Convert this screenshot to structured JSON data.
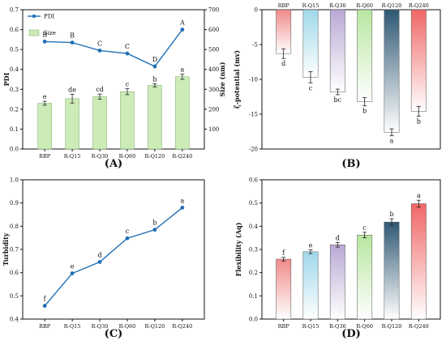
{
  "chart_data": [
    {
      "id": "A",
      "type": "bar+line",
      "panel_label": "(A)",
      "categories": [
        "RBP",
        "R-Q15",
        "R-Q30",
        "R-Q60",
        "R-Q120",
        "R-Q240"
      ],
      "legend": [
        {
          "label": "PDI",
          "kind": "line"
        },
        {
          "label": "Size",
          "kind": "bar"
        }
      ],
      "legend_position": "top-left",
      "left_axis": {
        "label": "PDI",
        "range": [
          0.0,
          0.7
        ],
        "ticks": [
          "0.0",
          "0.1",
          "0.2",
          "0.3",
          "0.4",
          "0.5",
          "0.6",
          "0.7"
        ]
      },
      "right_axis": {
        "label": "Size (nm)",
        "range": [
          0,
          700
        ],
        "ticks": [
          "100",
          "200",
          "300",
          "400",
          "500",
          "600",
          "700"
        ]
      },
      "series": [
        {
          "name": "PDI",
          "axis": "left",
          "kind": "line",
          "color": "#1f6fb5",
          "values": [
            0.54,
            0.535,
            0.495,
            0.48,
            0.415,
            0.6
          ],
          "errors": [
            0.008,
            0.008,
            0.01,
            0.01,
            0.01,
            0.008
          ],
          "labels": [
            "B",
            "B",
            "C",
            "C",
            "D",
            "A"
          ]
        },
        {
          "name": "Size",
          "axis": "right",
          "kind": "bar",
          "color": "#cdebb7",
          "values": [
            230,
            253,
            263,
            288,
            320,
            363
          ],
          "errors": [
            10,
            22,
            13,
            15,
            8,
            13
          ],
          "labels": [
            "e",
            "de",
            "cd",
            "c",
            "b",
            "a"
          ]
        }
      ]
    },
    {
      "id": "B",
      "type": "bar",
      "panel_label": "(B)",
      "categories": [
        "RBP",
        "R-Q15",
        "R-Q30",
        "R-Q60",
        "R-Q120",
        "R-Q240"
      ],
      "ylabel": "ζ-potential (mv)",
      "ylim": [
        -20,
        0
      ],
      "yticks": [
        "-20",
        "-15",
        "-10",
        "-5",
        "0"
      ],
      "categories_position": "top",
      "values": [
        -6.3,
        -9.7,
        -11.8,
        -13.2,
        -17.6,
        -14.6
      ],
      "errors": [
        0.7,
        0.8,
        0.4,
        0.6,
        0.5,
        0.7
      ],
      "labels": [
        "d",
        "c",
        "bc",
        "b",
        "a",
        "b"
      ],
      "colors": [
        "#f08a8a",
        "#9fd8ea",
        "#b9a8d4",
        "#b8e6a0",
        "#2f5874",
        "#f06666"
      ]
    },
    {
      "id": "C",
      "type": "line",
      "panel_label": "(C)",
      "categories": [
        "RBP",
        "R-Q15",
        "R-Q30",
        "R-Q60",
        "R-Q120",
        "R-Q240"
      ],
      "ylabel": "Turbidity",
      "ylim": [
        0.4,
        1.0
      ],
      "yticks": [
        "0.4",
        "0.5",
        "0.6",
        "0.7",
        "0.8",
        "0.9",
        "1.0"
      ],
      "values": [
        0.457,
        0.597,
        0.646,
        0.748,
        0.785,
        0.88
      ],
      "labels": [
        "f",
        "e",
        "d",
        "c",
        "b",
        "a"
      ],
      "color": "#1f6fb5"
    },
    {
      "id": "D",
      "type": "bar",
      "panel_label": "(D)",
      "categories": [
        "RBP",
        "R-Q15",
        "R-Q30",
        "R-Q60",
        "R-Q120",
        "R-Q240"
      ],
      "ylabel": "Flexibility (Aq)",
      "ylim": [
        0.0,
        0.6
      ],
      "yticks": [
        "0.0",
        "0.1",
        "0.2",
        "0.3",
        "0.4",
        "0.5",
        "0.6"
      ],
      "values": [
        0.258,
        0.29,
        0.32,
        0.362,
        0.418,
        0.497
      ],
      "errors": [
        0.008,
        0.008,
        0.01,
        0.012,
        0.014,
        0.015
      ],
      "labels": [
        "f",
        "e",
        "d",
        "c",
        "b",
        "a"
      ],
      "colors": [
        "#f08a8a",
        "#9fd8ea",
        "#b9a8d4",
        "#b8e6a0",
        "#2f5874",
        "#f06666"
      ]
    }
  ]
}
